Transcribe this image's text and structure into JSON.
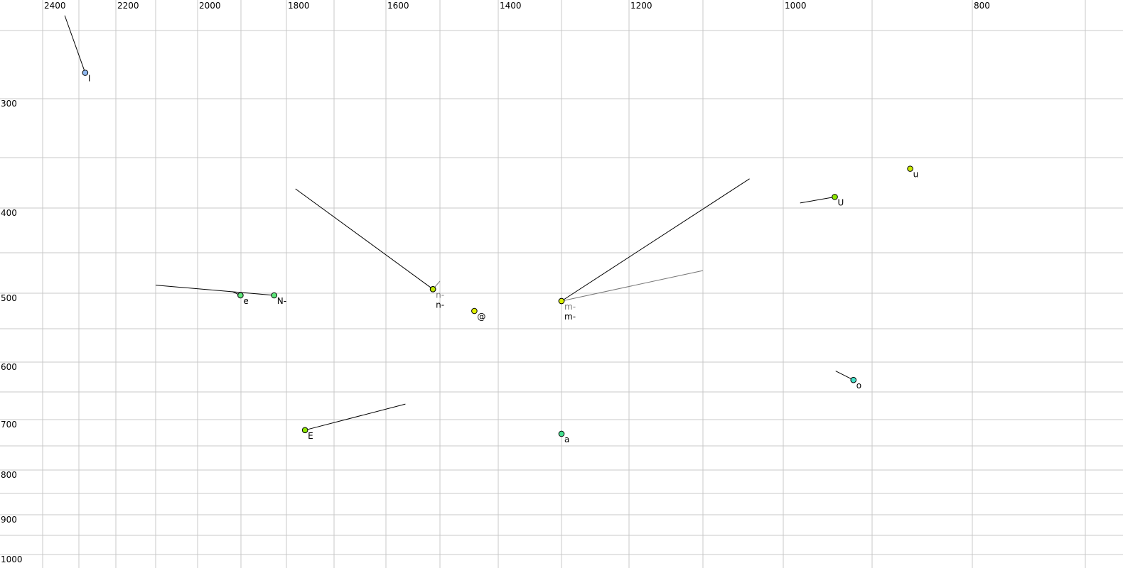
{
  "chart_data": {
    "type": "scatter",
    "title": "",
    "xlabel": "",
    "ylabel": "",
    "x_axis": {
      "reversed": true,
      "ticks": [
        2400,
        2200,
        2000,
        1800,
        1600,
        1400,
        1200,
        1000,
        800
      ],
      "grid_step": 100,
      "range": [
        2400,
        700
      ]
    },
    "y_axis": {
      "reversed": false,
      "ticks": [
        300,
        400,
        500,
        600,
        700,
        800,
        900,
        1000
      ],
      "grid_step": 50,
      "range": [
        250,
        1000
      ]
    },
    "grid": true,
    "points": [
      {
        "label": "I",
        "f2": 2283,
        "f1": 281,
        "color": "#8fb8f0",
        "trail": [
          2339,
          239
        ]
      },
      {
        "label": "e",
        "f2": 1901,
        "f1": 503,
        "color": "#5ee67a",
        "trail": [
          1920,
          498
        ]
      },
      {
        "label": "N-",
        "f2": 1827,
        "f1": 503,
        "color": "#5ee67a",
        "trail": [
          2100,
          490
        ]
      },
      {
        "label": "n-",
        "f2": 1513,
        "f1": 495,
        "color": "#bfe800",
        "trail": [
          1500,
          485
        ],
        "faint": true
      },
      {
        "label": "n-",
        "f2": 1513,
        "f1": 495,
        "color": "#bfe800",
        "trail": [
          1781,
          381
        ]
      },
      {
        "label": "@",
        "f2": 1441,
        "f1": 525,
        "color": "#e0f000"
      },
      {
        "label": "m-",
        "f2": 1300,
        "f1": 511,
        "color": "#d8f000",
        "trail": [
          1100,
          472
        ],
        "faint": true
      },
      {
        "label": "m-",
        "f2": 1300,
        "f1": 511,
        "color": "#d8f000",
        "trail": [
          1042,
          371
        ]
      },
      {
        "label": "U",
        "f2": 942,
        "f1": 389,
        "color": "#8ee800",
        "trail": [
          981,
          395
        ]
      },
      {
        "label": "u",
        "f2": 862,
        "f1": 361,
        "color": "#c8e800"
      },
      {
        "label": "o",
        "f2": 921,
        "f1": 630,
        "color": "#44e0c8",
        "trail": [
          941,
          615
        ]
      },
      {
        "label": "E",
        "f2": 1761,
        "f1": 720,
        "color": "#8ee800",
        "trail": [
          1564,
          672
        ]
      },
      {
        "label": "a",
        "f2": 1300,
        "f1": 727,
        "color": "#44e090"
      }
    ]
  }
}
